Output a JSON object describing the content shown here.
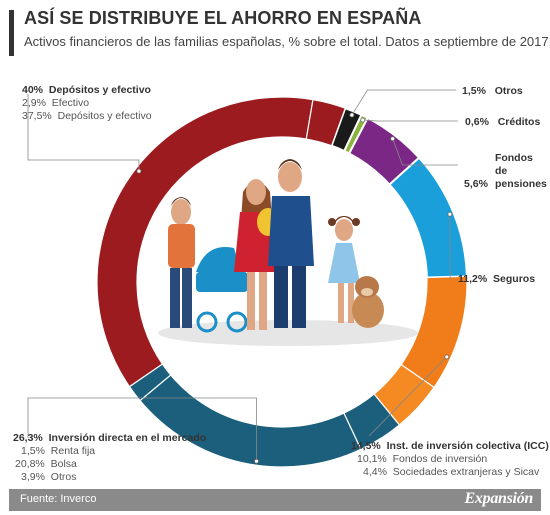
{
  "title": "ASÍ SE DISTRIBUYE EL AHORRO EN ESPAÑA",
  "subtitle": "Activos financieros de las familias españolas, % sobre el total. Datos a septiembre de 2017.",
  "source": "Fuente: Inverco",
  "brand": "Expansión",
  "chart_data": {
    "type": "pie",
    "donut": true,
    "unit": "%",
    "slices": [
      {
        "name": "Otros",
        "value": 1.5,
        "label": "1,5%",
        "color": "#1a1a1a"
      },
      {
        "name": "Créditos",
        "value": 0.6,
        "label": "0,6%",
        "color": "#8bb33d"
      },
      {
        "name": "Fondos de pensiones",
        "value": 5.6,
        "label": "5,6%",
        "color": "#7a2785"
      },
      {
        "name": "Seguros",
        "value": 11.2,
        "label": "11,2%",
        "color": "#1a9fdb"
      },
      {
        "name": "Inst. de inversión colectiva (ICC)",
        "value": 14.5,
        "label": "14,5%",
        "color": "#f07d19",
        "sub": [
          {
            "name": "Fondos de inversión",
            "value": 10.1,
            "label": "10,1%",
            "color": "#f07d19"
          },
          {
            "name": "Sociedades extranjeras y Sicav",
            "value": 4.4,
            "label": "4,4%",
            "color": "#f58a22"
          }
        ]
      },
      {
        "name": "Inversión directa en el mercado",
        "value": 26.3,
        "label": "26,3%",
        "color": "#1b5f7c",
        "sub": [
          {
            "name": "Otros",
            "value": 3.9,
            "label": "3,9%",
            "color": "#1b5f7c"
          },
          {
            "name": "Bolsa",
            "value": 20.8,
            "label": "20,8%",
            "color": "#1b5f7c"
          },
          {
            "name": "Renta fija",
            "value": 1.5,
            "label": "1,5%",
            "color": "#1b5f7c"
          }
        ]
      },
      {
        "name": "Depósitos y efectivo",
        "value": 40,
        "label": "40%",
        "color": "#9b1b1f",
        "sub": [
          {
            "name": "Depósitos y efectivo",
            "value": 37.5,
            "label": "37,5%",
            "color": "#9b1b1f"
          },
          {
            "name": "Efectivo",
            "value": 2.9,
            "label": "2,9%",
            "color": "#9b1b1f"
          }
        ]
      }
    ]
  }
}
